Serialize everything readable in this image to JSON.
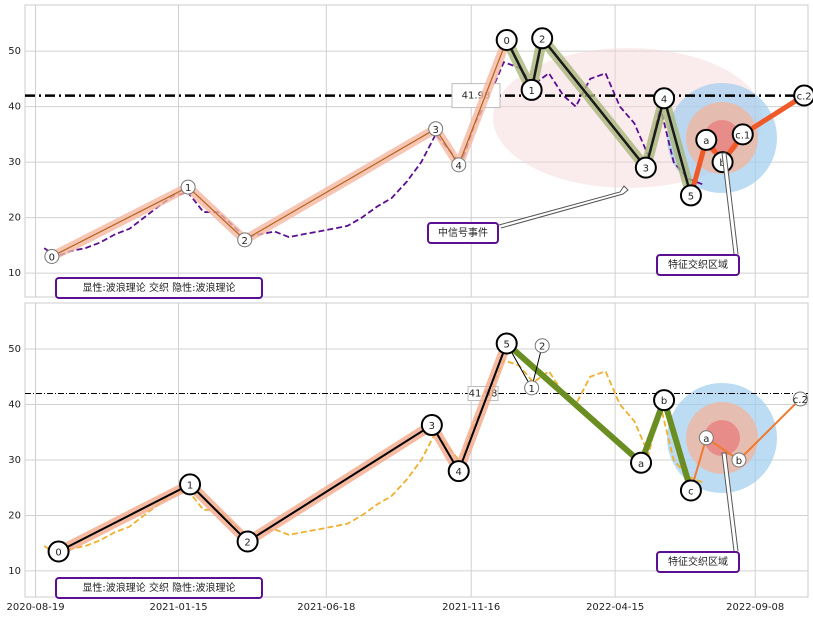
{
  "chart_data": [
    {
      "type": "line",
      "ylim": [
        5.7,
        58.3
      ],
      "yticks": [
        10,
        20,
        30,
        40,
        50
      ],
      "xlim": [
        "2020-08-08",
        "2022-11-02"
      ],
      "xticks": [
        "2020-08-19",
        "2021-01-15",
        "2021-06-18",
        "2021-11-16",
        "2022-04-15",
        "2022-09-08"
      ],
      "grid": true,
      "series": [
        {
          "color": "#5b0f91",
          "x": [
            "2020-08-28",
            "2020-09-10",
            "2020-09-25",
            "2020-10-10",
            "2020-10-25",
            "2020-11-10",
            "2020-11-25",
            "2020-12-10",
            "2020-12-25",
            "2021-01-10",
            "2021-01-25",
            "2021-02-10",
            "2021-02-25",
            "2021-03-10",
            "2021-03-25",
            "2021-04-10",
            "2021-04-25",
            "2021-05-10",
            "2021-05-25",
            "2021-06-10",
            "2021-06-25",
            "2021-07-10",
            "2021-07-25",
            "2021-08-10",
            "2021-08-25",
            "2021-09-10",
            "2021-09-25",
            "2021-10-10",
            "2021-10-25",
            "2021-11-05",
            "2021-11-20",
            "2021-12-05",
            "2021-12-20",
            "2022-01-05",
            "2022-01-20",
            "2022-02-05",
            "2022-02-20",
            "2022-03-05",
            "2022-03-20",
            "2022-04-05",
            "2022-04-20",
            "2022-05-05",
            "2022-05-20",
            "2022-06-01",
            "2022-06-15",
            "2022-06-30",
            "2022-07-15"
          ],
          "values": [
            14.5,
            13,
            14,
            14.5,
            15.5,
            17,
            18,
            20,
            22,
            24,
            24.5,
            21,
            21,
            19,
            16.5,
            17,
            17.5,
            16.5,
            17,
            17.5,
            18,
            18.5,
            20,
            22,
            23.5,
            26.5,
            30,
            35,
            32,
            29.5,
            37,
            42,
            48,
            47,
            44,
            46,
            42,
            40,
            45,
            46,
            40,
            37,
            31,
            40,
            30,
            27,
            26
          ]
        }
      ],
      "hline": {
        "value": 41.98,
        "label": "41.98",
        "color": "#000000"
      },
      "wave_lines": [
        {
          "color": "#b5651d",
          "width": 1.2,
          "halo": "#f4b6a0",
          "label_size": 7,
          "x": [
            "2020-09-05",
            "2021-01-25",
            "2021-03-25",
            "2021-10-10",
            "2021-11-03",
            "2021-12-23"
          ],
          "values": [
            13,
            25.5,
            16,
            36,
            29.5,
            52
          ],
          "labels": [
            "0",
            "1",
            "2",
            "3",
            "4",
            null
          ]
        },
        {
          "color": "#1a1a1a",
          "width": 2.5,
          "halo": "#a9b77a",
          "label_size": 10,
          "x": [
            "2021-12-23",
            "2022-01-18",
            "2022-01-29",
            "2022-05-17",
            "2022-06-05",
            "2022-07-03"
          ],
          "values": [
            52,
            43,
            52.3,
            29,
            41.5,
            24
          ],
          "labels": [
            "0",
            "1",
            "2",
            "3",
            "4",
            "5"
          ]
        },
        {
          "color": "#f05a28",
          "width": 5,
          "label_size": 10,
          "x": [
            "2022-07-03",
            "2022-07-19",
            "2022-08-05",
            "2022-08-26",
            "2022-10-29"
          ],
          "values": [
            24,
            34,
            30,
            35,
            42
          ],
          "labels": [
            null,
            "a",
            "b",
            "c.1",
            "c.2"
          ]
        }
      ],
      "annotations": [
        "中信号事件",
        "特征交织区域"
      ],
      "legend_text": "显性:波浪理论 交织 隐性:波浪理论"
    },
    {
      "type": "line",
      "ylim": [
        5.3,
        58.3
      ],
      "yticks": [
        10,
        20,
        30,
        40,
        50
      ],
      "xlim": [
        "2020-08-08",
        "2022-11-02"
      ],
      "xticks": [
        "2020-08-19",
        "2021-01-15",
        "2021-06-18",
        "2021-11-16",
        "2022-04-15",
        "2022-09-08"
      ],
      "grid": true,
      "series": [
        {
          "color": "#f0b030",
          "x": [
            "2020-08-28",
            "2020-09-10",
            "2020-09-25",
            "2020-10-10",
            "2020-10-25",
            "2020-11-10",
            "2020-11-25",
            "2020-12-10",
            "2020-12-25",
            "2021-01-10",
            "2021-01-25",
            "2021-02-10",
            "2021-02-25",
            "2021-03-10",
            "2021-03-25",
            "2021-04-10",
            "2021-04-25",
            "2021-05-10",
            "2021-05-25",
            "2021-06-10",
            "2021-06-25",
            "2021-07-10",
            "2021-07-25",
            "2021-08-10",
            "2021-08-25",
            "2021-09-10",
            "2021-09-25",
            "2021-10-10",
            "2021-10-25",
            "2021-11-05",
            "2021-11-20",
            "2021-12-05",
            "2021-12-20",
            "2022-01-05",
            "2022-01-20",
            "2022-02-05",
            "2022-02-20",
            "2022-03-05",
            "2022-03-20",
            "2022-04-05",
            "2022-04-20",
            "2022-05-05",
            "2022-05-20",
            "2022-06-01",
            "2022-06-15",
            "2022-06-30",
            "2022-07-15"
          ],
          "values": [
            14.5,
            13,
            14,
            14.5,
            15.5,
            17,
            18,
            20,
            22,
            24,
            24.5,
            21,
            21,
            19,
            16.5,
            17,
            17.5,
            16.5,
            17,
            17.5,
            18,
            18.5,
            20,
            22,
            23.5,
            26.5,
            30,
            35,
            32,
            29.5,
            37,
            42,
            48,
            47,
            44,
            46,
            42,
            40,
            45,
            46,
            40,
            37,
            31,
            40,
            30,
            27,
            26
          ]
        }
      ],
      "hline": {
        "value": 41.98,
        "label": "41.98",
        "color": "#000000"
      },
      "wave_lines": [
        {
          "color": "#000000",
          "width": 2,
          "halo": "#f2a98a",
          "label_size": 10,
          "x": [
            "2020-09-12",
            "2021-01-27",
            "2021-03-28",
            "2021-10-06",
            "2021-11-03",
            "2021-12-23"
          ],
          "values": [
            13.5,
            25.6,
            15.3,
            36.3,
            28,
            51
          ],
          "labels": [
            "0",
            "1",
            "2",
            "3",
            "4",
            "5"
          ]
        },
        {
          "color": "#6b8e23",
          "width": 6,
          "label_size": 10,
          "x": [
            "2021-12-23",
            "2022-05-12",
            "2022-06-05",
            "2022-07-03"
          ],
          "values": [
            51,
            29.5,
            40.8,
            24.5
          ],
          "labels": [
            null,
            "a",
            "b",
            "c"
          ]
        },
        {
          "color": "#000000",
          "width": 1,
          "label_size": 7,
          "x": [
            "2021-12-23",
            "2022-01-18",
            "2022-01-29"
          ],
          "values": [
            51,
            43,
            50.6
          ],
          "labels": [
            null,
            "1",
            "2"
          ]
        },
        {
          "color": "#f07a30",
          "width": 2,
          "label_size": 7,
          "x": [
            "2022-07-03",
            "2022-07-19",
            "2022-08-22",
            "2022-10-25"
          ],
          "values": [
            24.5,
            34,
            30,
            41
          ],
          "labels": [
            null,
            "a",
            "b",
            "c.2"
          ]
        }
      ],
      "annotations": [
        "特征交织区域"
      ],
      "legend_text": "显性:波浪理论 交织 隐性:波浪理论"
    }
  ]
}
